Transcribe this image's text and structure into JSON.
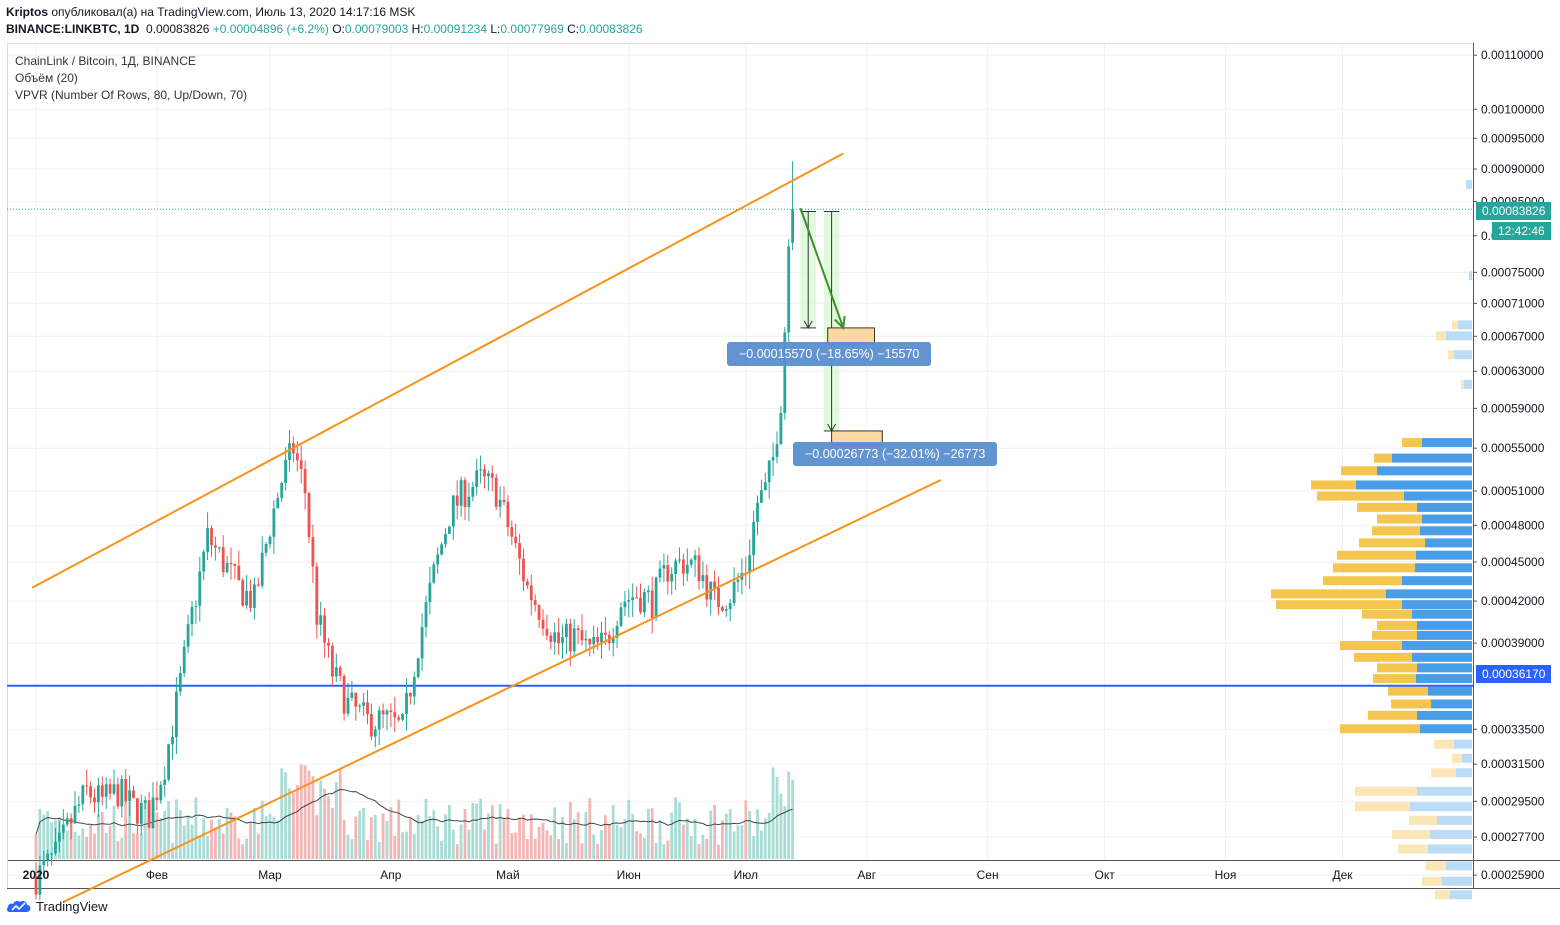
{
  "header": {
    "author": "Kriptos",
    "published": "опубликовал(а) на TradingView.com, Июль 13, 2020 14:17:16 MSK",
    "symbol": "BINANCE:LINKBTC, 1D",
    "last": "0.00083826",
    "change": "+0.00004896 (+6.2%)",
    "o_label": "O:",
    "o_value": "0.00079003",
    "h_label": "H:",
    "h_value": "0.00091234",
    "l_label": "L:",
    "l_value": "0.00077969",
    "c_label": "C:",
    "c_value": "0.00083826"
  },
  "legend": {
    "title": "ChainLink / Bitcoin, 1Д, BINANCE",
    "volume": "Объём (20)",
    "vpvr": "VPVR (Number Of Rows, 80, Up/Down, 70)"
  },
  "badges": {
    "price": "0.00083826",
    "countdown": "12:42:46",
    "hline": "0.00036170"
  },
  "measure": {
    "label1": "−0.00015570 (−18.65%) −15570",
    "label2": "−0.00026773 (−32.01%) −26773"
  },
  "footer": {
    "brand": "TradingView"
  },
  "chart_data": {
    "type": "candlestick",
    "y_scale": "log",
    "ylim": [
      0.000245,
      0.00112
    ],
    "yticks": [
      "0.00110000",
      "0.00100000",
      "0.00095000",
      "0.00090000",
      "0.00085000",
      "0.00080000",
      "0.00075000",
      "0.00071000",
      "0.00067000",
      "0.00063000",
      "0.00059000",
      "0.00055000",
      "0.00051000",
      "0.00048000",
      "0.00045000",
      "0.00042000",
      "0.00039000",
      "0.00033500",
      "0.00031500",
      "0.00029500",
      "0.00027700",
      "0.00025900"
    ],
    "xticks": [
      "2020",
      "Фев",
      "Мар",
      "Апр",
      "Май",
      "Июн",
      "Июл",
      "Авг",
      "Сен",
      "Окт",
      "Ноя",
      "Дек"
    ],
    "close_anchors": [
      [
        "2020-01-01",
        0.000258
      ],
      [
        "2020-01-06",
        0.000268
      ],
      [
        "2020-01-10",
        0.000285
      ],
      [
        "2020-01-14",
        0.0003
      ],
      [
        "2020-01-18",
        0.000295
      ],
      [
        "2020-01-22",
        0.0003
      ],
      [
        "2020-01-26",
        0.000292
      ],
      [
        "2020-01-30",
        0.000288
      ],
      [
        "2020-02-03",
        0.000315
      ],
      [
        "2020-02-06",
        0.00035
      ],
      [
        "2020-02-10",
        0.00041
      ],
      [
        "2020-02-14",
        0.00047
      ],
      [
        "2020-02-18",
        0.00045
      ],
      [
        "2020-02-22",
        0.00043
      ],
      [
        "2020-02-26",
        0.00042
      ],
      [
        "2020-03-01",
        0.00048
      ],
      [
        "2020-03-04",
        0.00052
      ],
      [
        "2020-03-07",
        0.00055
      ],
      [
        "2020-03-10",
        0.00051
      ],
      [
        "2020-03-13",
        0.00041
      ],
      [
        "2020-03-17",
        0.00037
      ],
      [
        "2020-03-21",
        0.00035
      ],
      [
        "2020-03-26",
        0.00034
      ],
      [
        "2020-03-31",
        0.00034
      ],
      [
        "2020-04-04",
        0.000335
      ],
      [
        "2020-04-08",
        0.00039
      ],
      [
        "2020-04-12",
        0.00044
      ],
      [
        "2020-04-16",
        0.00049
      ],
      [
        "2020-04-20",
        0.00051
      ],
      [
        "2020-04-24",
        0.00052
      ],
      [
        "2020-04-28",
        0.00051
      ],
      [
        "2020-05-02",
        0.00047
      ],
      [
        "2020-05-06",
        0.00043
      ],
      [
        "2020-05-10",
        0.00041
      ],
      [
        "2020-05-14",
        0.00039
      ],
      [
        "2020-05-18",
        0.000395
      ],
      [
        "2020-05-22",
        0.000385
      ],
      [
        "2020-05-26",
        0.00039
      ],
      [
        "2020-05-30",
        0.00042
      ],
      [
        "2020-06-03",
        0.000425
      ],
      [
        "2020-06-07",
        0.00042
      ],
      [
        "2020-06-11",
        0.000445
      ],
      [
        "2020-06-15",
        0.00045
      ],
      [
        "2020-06-19",
        0.000445
      ],
      [
        "2020-06-23",
        0.00042
      ],
      [
        "2020-06-27",
        0.000425
      ],
      [
        "2020-07-01",
        0.000445
      ],
      [
        "2020-07-04",
        0.0005
      ],
      [
        "2020-07-06",
        0.00051
      ],
      [
        "2020-07-08",
        0.00054
      ],
      [
        "2020-07-10",
        0.0006
      ],
      [
        "2020-07-11",
        0.00068
      ],
      [
        "2020-07-12",
        0.00079
      ],
      [
        "2020-07-13",
        0.000838
      ]
    ],
    "last_candle": {
      "date": "2020-07-13",
      "open": 0.00079003,
      "high": 0.00091234,
      "low": 0.00077969,
      "close": 0.00083826
    },
    "horizontal_line": {
      "price": 0.0003617
    },
    "channel": {
      "upper": [
        [
          "2019-12-31",
          0.00043
        ],
        [
          "2020-07-26",
          0.000925
        ]
      ],
      "lower": [
        [
          "2020-01-08",
          0.000247
        ],
        [
          "2020-08-20",
          0.00052
        ]
      ]
    },
    "arrow": {
      "from": [
        "2020-07-15",
        0.00084
      ],
      "to": [
        "2020-07-26",
        0.00068
      ]
    },
    "measures": [
      {
        "from": [
          "2020-07-15",
          0.000835
        ],
        "to": [
          "2020-07-19",
          0.00068
        ],
        "value": -0.0001557,
        "percent": -18.65
      },
      {
        "from": [
          "2020-07-21",
          0.000835
        ],
        "to": [
          "2020-07-25",
          0.000567
        ],
        "value": -0.00026773,
        "percent": -32.01
      }
    ],
    "target_zones": [
      {
        "from": "2020-07-22",
        "to": "2020-08-03",
        "top": 0.00068,
        "bottom": 0.000661
      },
      {
        "from": "2020-07-23",
        "to": "2020-08-05",
        "top": 0.000567,
        "bottom": 0.000553
      }
    ],
    "vpvr_rows": [
      [
        0.000875,
        6,
        0
      ],
      [
        0.000745,
        3,
        0
      ],
      [
        0.000683,
        14,
        6
      ],
      [
        0.00067,
        26,
        10
      ],
      [
        0.000648,
        18,
        6
      ],
      [
        0.000615,
        8,
        3
      ],
      [
        0.000555,
        50,
        20
      ],
      [
        0.00054,
        80,
        18
      ],
      [
        0.000528,
        95,
        36
      ],
      [
        0.000515,
        116,
        45
      ],
      [
        0.000505,
        68,
        87
      ],
      [
        0.000495,
        55,
        60
      ],
      [
        0.000485,
        50,
        45
      ],
      [
        0.000475,
        52,
        48
      ],
      [
        0.000465,
        47,
        66
      ],
      [
        0.000455,
        56,
        79
      ],
      [
        0.000445,
        57,
        82
      ],
      [
        0.000435,
        70,
        79
      ],
      [
        0.000425,
        86,
        115
      ],
      [
        0.000417,
        70,
        126
      ],
      [
        0.00041,
        60,
        50
      ],
      [
        0.000402,
        55,
        40
      ],
      [
        0.000395,
        55,
        45
      ],
      [
        0.000388,
        70,
        62
      ],
      [
        0.00038,
        60,
        58
      ],
      [
        0.000373,
        55,
        40
      ],
      [
        0.000366,
        56,
        43
      ],
      [
        0.000358,
        44,
        40
      ],
      [
        0.00035,
        41,
        40
      ],
      [
        0.000343,
        55,
        49
      ],
      [
        0.000335,
        52,
        80
      ],
      [
        0.000326,
        18,
        20
      ],
      [
        0.000318,
        10,
        10
      ],
      [
        0.00031,
        16,
        25
      ],
      [
        0.0003,
        55,
        62
      ],
      [
        0.000292,
        62,
        55
      ],
      [
        0.000285,
        35,
        28
      ],
      [
        0.000278,
        42,
        38
      ],
      [
        0.000271,
        44,
        30
      ],
      [
        0.000263,
        26,
        20
      ],
      [
        0.000256,
        30,
        20
      ],
      [
        0.00025,
        22,
        15
      ]
    ],
    "volume_ma_period": 20
  }
}
